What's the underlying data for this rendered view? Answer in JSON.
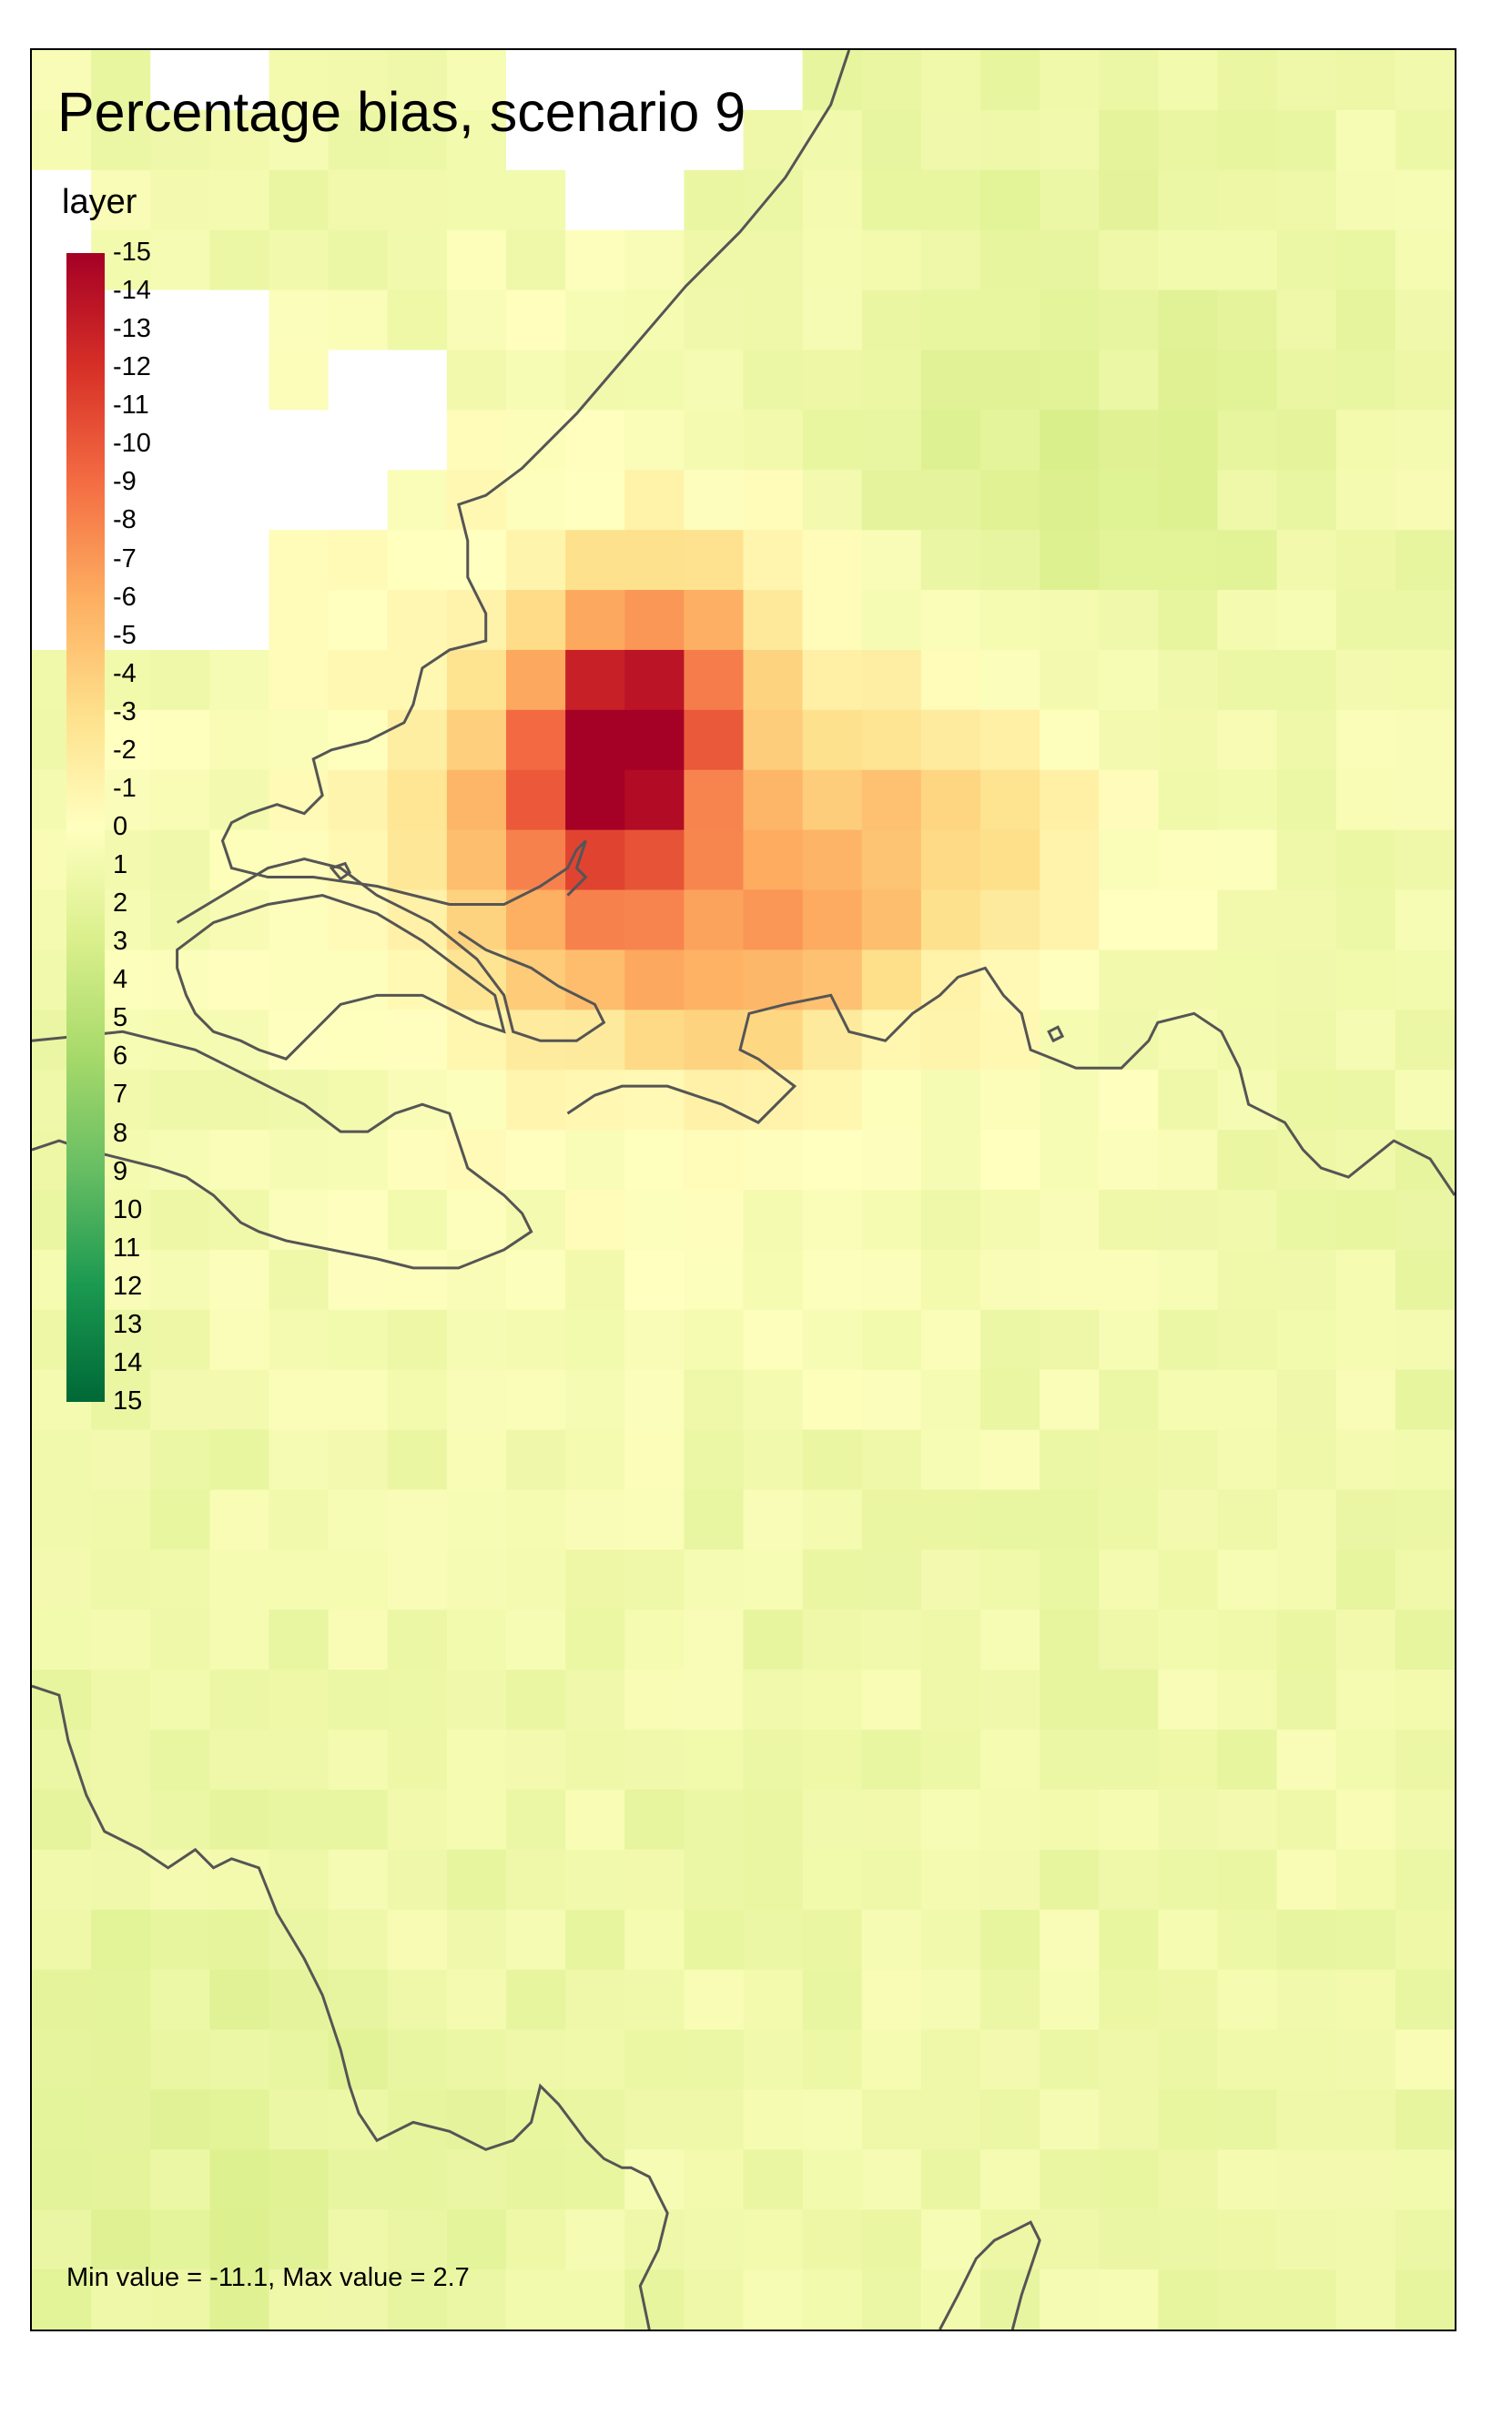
{
  "title": "Percentage bias, scenario 9",
  "legend": {
    "title": "layer",
    "ticks": [
      "-15",
      "-14",
      "-13",
      "-12",
      "-11",
      "-10",
      "-9",
      "-8",
      "-7",
      "-6",
      "-5",
      "-4",
      "-3",
      "-2",
      "-1",
      "0",
      "1",
      "2",
      "3",
      "4",
      "5",
      "6",
      "7",
      "8",
      "9",
      "10",
      "11",
      "12",
      "13",
      "14",
      "15"
    ],
    "colors": [
      "#a50026",
      "#d73027",
      "#f46d43",
      "#fdae61",
      "#fee08b",
      "#ffffbf",
      "#d9ef8b",
      "#a6d96a",
      "#66bd63",
      "#1a9850",
      "#006837"
    ]
  },
  "note": "Min value = -11.1, Max value = 2.7",
  "grid": {
    "cols": 24,
    "rows": 38,
    "background_value": 1.2,
    "hotspots": [
      {
        "c": 9.5,
        "r": 11.0,
        "amp": -10.5,
        "s": 1.1
      },
      {
        "c": 8.7,
        "r": 12.3,
        "amp": -6.0,
        "s": 1.6
      },
      {
        "c": 10.3,
        "r": 9.6,
        "amp": -5.0,
        "s": 1.3
      },
      {
        "c": 14.5,
        "r": 12.5,
        "amp": -4.0,
        "s": 1.8
      },
      {
        "c": 12.0,
        "r": 14.6,
        "amp": -3.8,
        "s": 1.4
      },
      {
        "c": 9.5,
        "r": 14.3,
        "amp": -3.0,
        "s": 1.4
      },
      {
        "c": 10.0,
        "r": 12.0,
        "amp": -2.5,
        "s": 5.0
      },
      {
        "c": 16.0,
        "r": 6.5,
        "amp": 1.8,
        "s": 3.0
      },
      {
        "c": 2.0,
        "r": 35.0,
        "amp": 1.0,
        "s": 3.0
      }
    ],
    "nodata_cells": [
      [
        2,
        0
      ],
      [
        3,
        0
      ],
      [
        8,
        0
      ],
      [
        9,
        0
      ],
      [
        10,
        0
      ],
      [
        11,
        0
      ],
      [
        12,
        0
      ],
      [
        8,
        1
      ],
      [
        9,
        1
      ],
      [
        10,
        1
      ],
      [
        11,
        1
      ],
      [
        9,
        2
      ],
      [
        10,
        2
      ],
      [
        0,
        2
      ],
      [
        0,
        3
      ],
      [
        0,
        4
      ],
      [
        0,
        5
      ],
      [
        0,
        6
      ],
      [
        0,
        7
      ],
      [
        0,
        8
      ],
      [
        0,
        9
      ],
      [
        1,
        4
      ],
      [
        2,
        4
      ],
      [
        3,
        4
      ],
      [
        1,
        5
      ],
      [
        2,
        5
      ],
      [
        3,
        5
      ],
      [
        1,
        6
      ],
      [
        2,
        6
      ],
      [
        3,
        6
      ],
      [
        1,
        7
      ],
      [
        2,
        7
      ],
      [
        3,
        7
      ],
      [
        1,
        8
      ],
      [
        2,
        8
      ],
      [
        3,
        8
      ],
      [
        1,
        9
      ],
      [
        2,
        9
      ],
      [
        3,
        9
      ],
      [
        5,
        5
      ],
      [
        6,
        5
      ],
      [
        5,
        6
      ],
      [
        6,
        6
      ],
      [
        4,
        6
      ],
      [
        5,
        7
      ],
      [
        4,
        7
      ]
    ]
  }
}
